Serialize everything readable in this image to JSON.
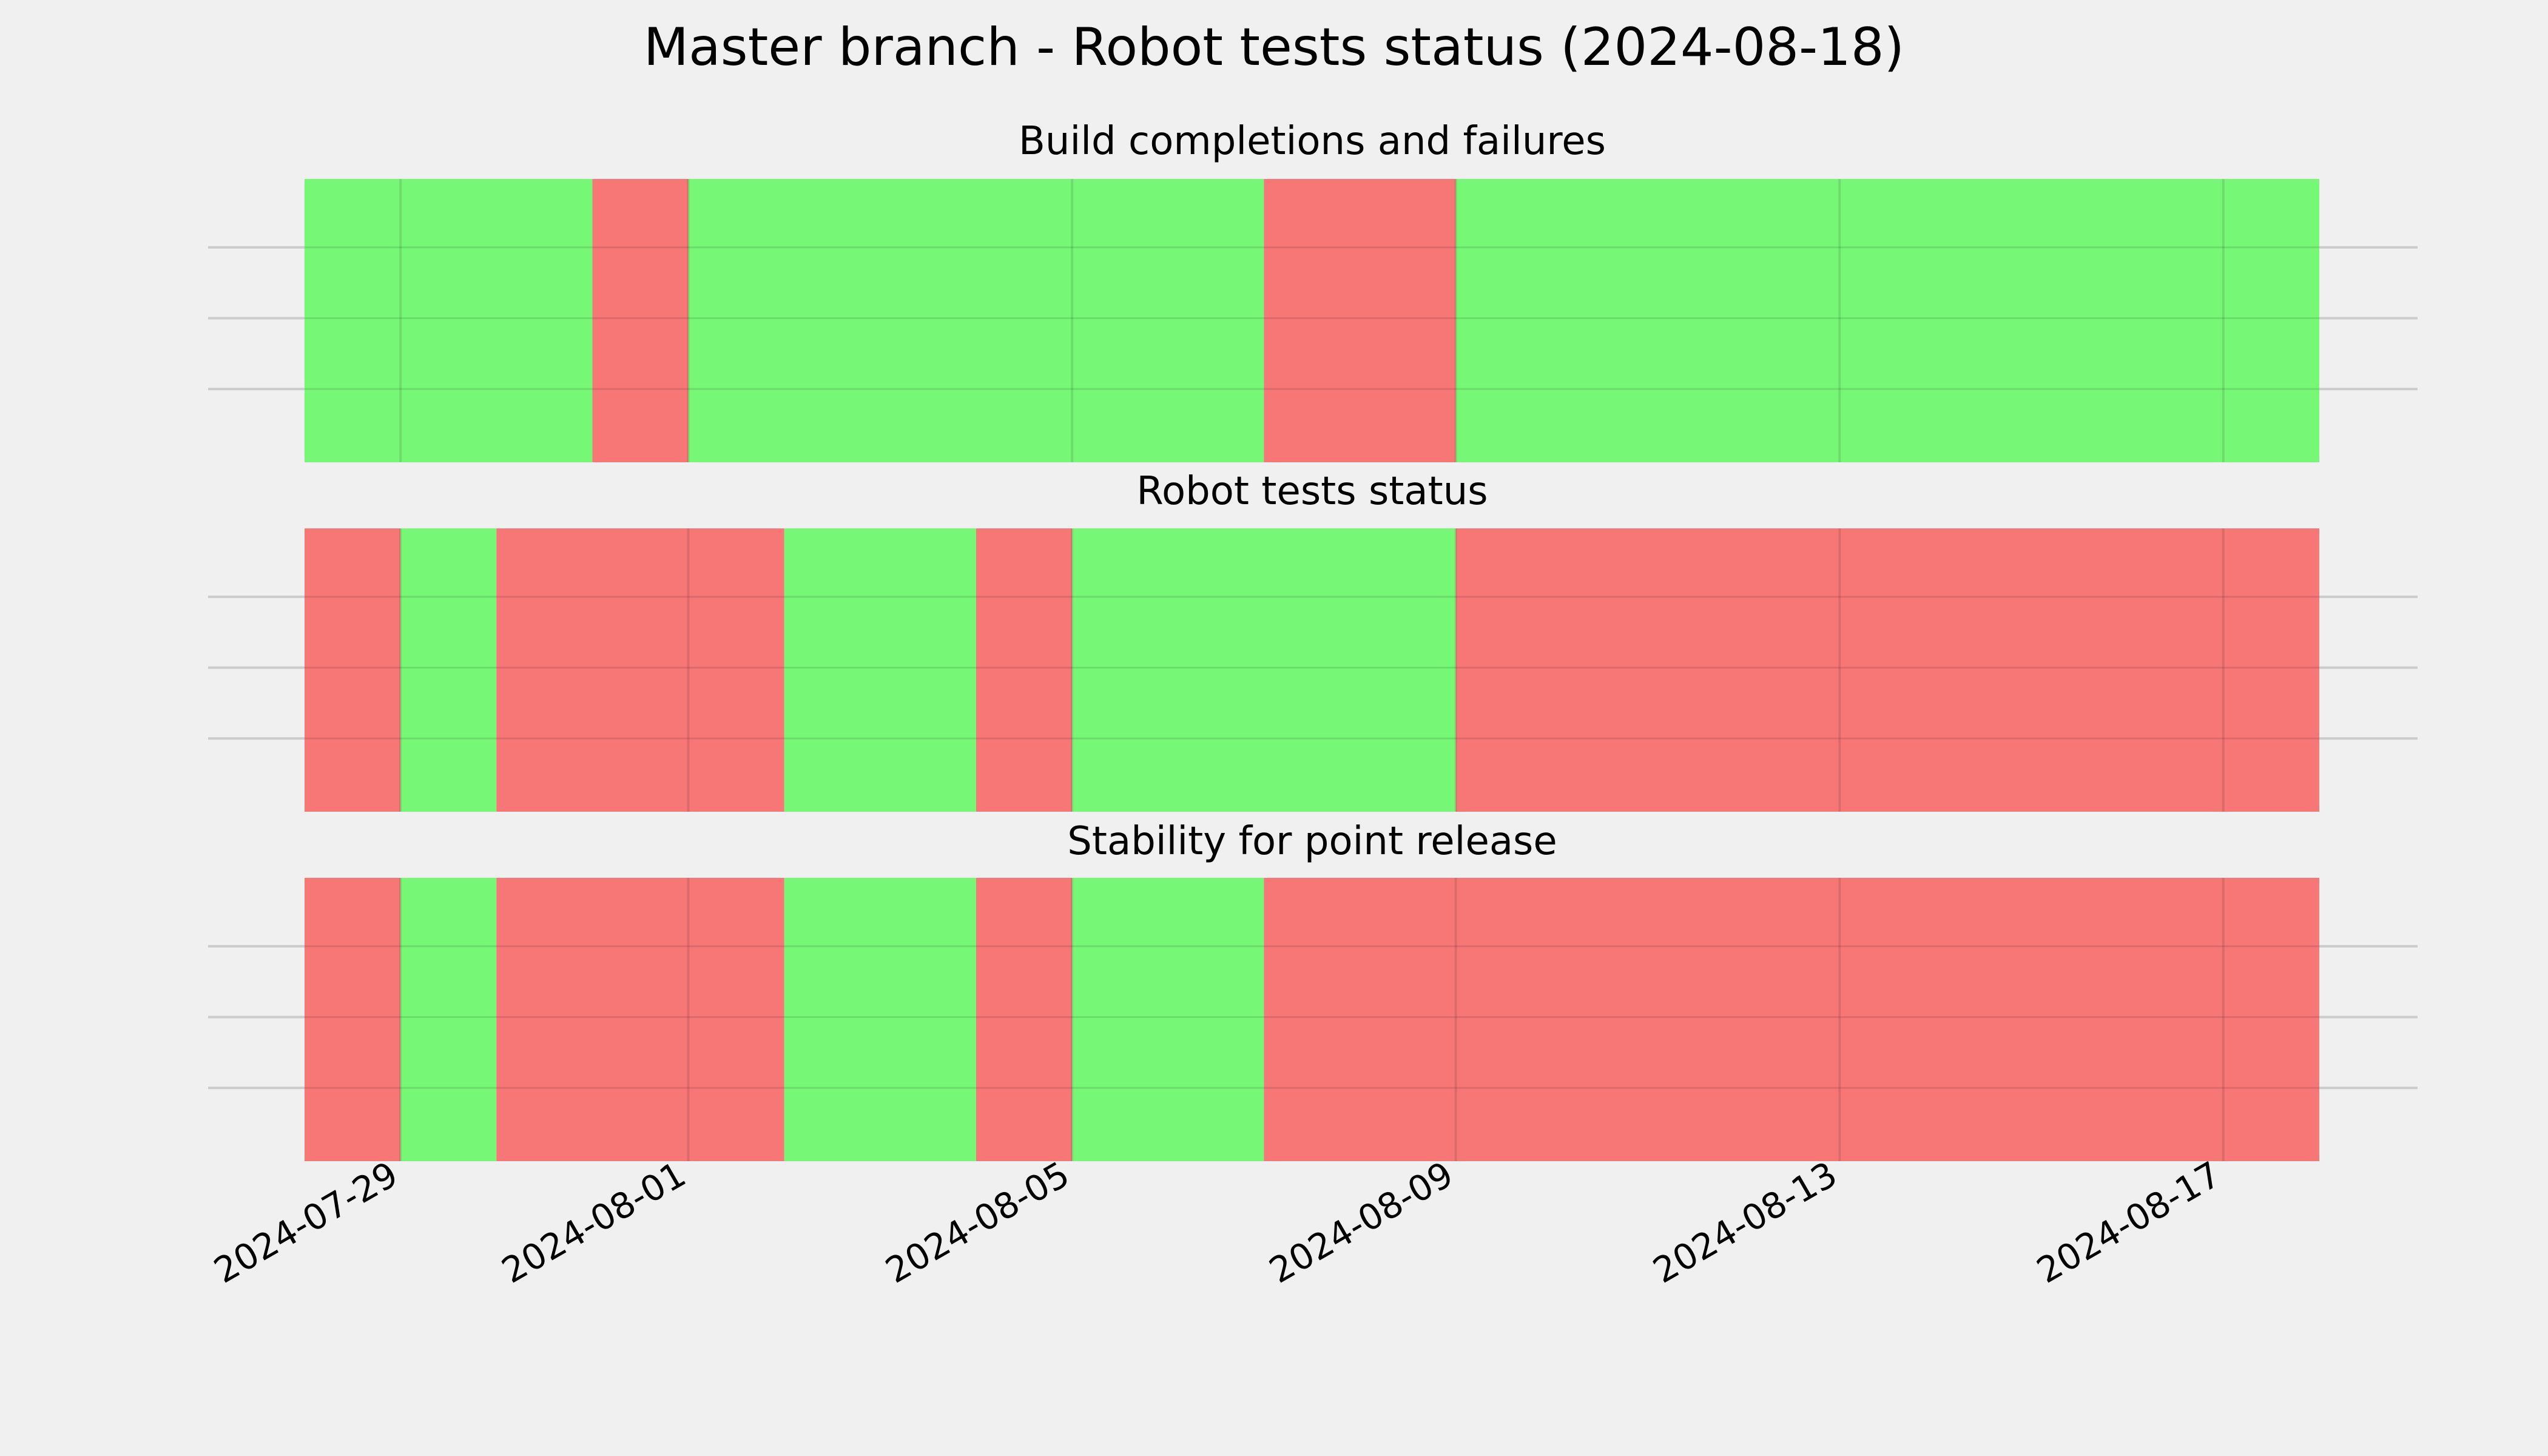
{
  "title": "Master branch - Robot tests status (2024-08-18)",
  "colors": {
    "background": "#f0f0f0",
    "pass": "#76f776",
    "fail": "#f77676",
    "grid": "#cbcbcb"
  },
  "chart_data": {
    "type": "timeline",
    "x_axis": {
      "type": "date",
      "range": [
        "2024-07-28",
        "2024-08-18"
      ],
      "ticks": [
        "2024-07-29",
        "2024-08-01",
        "2024-08-05",
        "2024-08-09",
        "2024-08-13",
        "2024-08-17"
      ]
    },
    "grid": true,
    "panels": [
      {
        "title": "Build completions and failures",
        "segments": [
          {
            "start": "2024-07-28",
            "end": "2024-07-31",
            "status": "pass"
          },
          {
            "start": "2024-07-31",
            "end": "2024-08-01",
            "status": "fail"
          },
          {
            "start": "2024-08-01",
            "end": "2024-08-07",
            "status": "pass"
          },
          {
            "start": "2024-08-07",
            "end": "2024-08-09",
            "status": "fail"
          },
          {
            "start": "2024-08-09",
            "end": "2024-08-18",
            "status": "pass"
          }
        ]
      },
      {
        "title": "Robot tests status",
        "segments": [
          {
            "start": "2024-07-28",
            "end": "2024-07-29",
            "status": "fail"
          },
          {
            "start": "2024-07-29",
            "end": "2024-07-30",
            "status": "pass"
          },
          {
            "start": "2024-07-30",
            "end": "2024-08-02",
            "status": "fail"
          },
          {
            "start": "2024-08-02",
            "end": "2024-08-04",
            "status": "pass"
          },
          {
            "start": "2024-08-04",
            "end": "2024-08-05",
            "status": "fail"
          },
          {
            "start": "2024-08-05",
            "end": "2024-08-09",
            "status": "pass"
          },
          {
            "start": "2024-08-09",
            "end": "2024-08-18",
            "status": "fail"
          }
        ]
      },
      {
        "title": "Stability for point release",
        "segments": [
          {
            "start": "2024-07-28",
            "end": "2024-07-29",
            "status": "fail"
          },
          {
            "start": "2024-07-29",
            "end": "2024-07-30",
            "status": "pass"
          },
          {
            "start": "2024-07-30",
            "end": "2024-08-02",
            "status": "fail"
          },
          {
            "start": "2024-08-02",
            "end": "2024-08-04",
            "status": "pass"
          },
          {
            "start": "2024-08-04",
            "end": "2024-08-05",
            "status": "fail"
          },
          {
            "start": "2024-08-05",
            "end": "2024-08-07",
            "status": "pass"
          },
          {
            "start": "2024-08-07",
            "end": "2024-08-18",
            "status": "fail"
          }
        ]
      }
    ]
  }
}
